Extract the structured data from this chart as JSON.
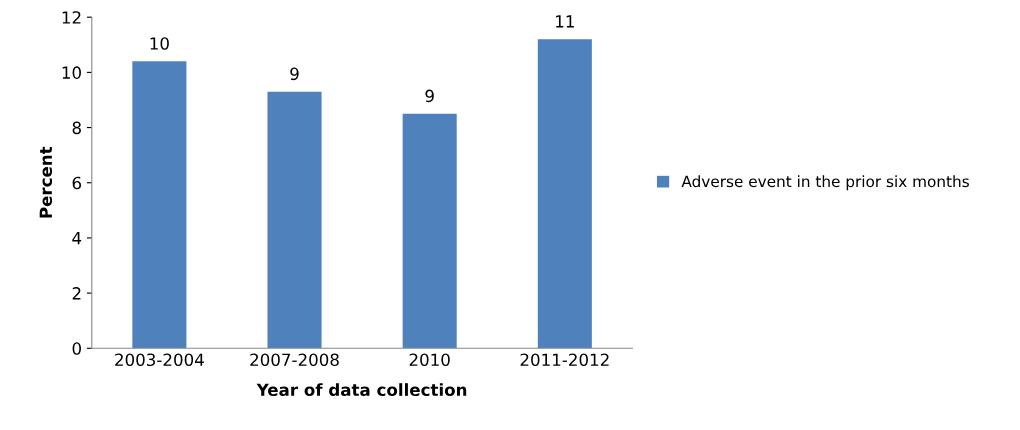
{
  "chart_data": {
    "type": "bar",
    "xlabel": "Year of data collection",
    "ylabel": "Percent",
    "categories": [
      "2003-2004",
      "2007-2008",
      "2010",
      "2011-2012"
    ],
    "series": [
      {
        "name": "Adverse event in the prior six months",
        "color": "#4f81bd",
        "values": [
          10.4,
          9.3,
          8.5,
          11.2
        ],
        "value_labels": [
          "10",
          "9",
          "9",
          "11"
        ]
      }
    ],
    "ylim": [
      0,
      12
    ],
    "yticks": [
      0,
      2,
      4,
      6,
      8,
      10,
      12
    ],
    "grid": false,
    "legend": "right"
  }
}
